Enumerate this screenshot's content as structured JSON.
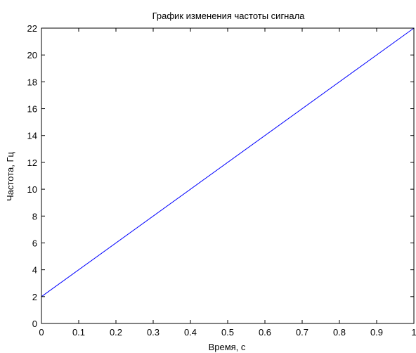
{
  "chart_data": {
    "type": "line",
    "title": "График изменения частоты сигнала",
    "xlabel": "Время, с",
    "ylabel": "Частота, Гц",
    "xlim": [
      0,
      1
    ],
    "ylim": [
      0,
      22
    ],
    "xticks": [
      0,
      0.1,
      0.2,
      0.3,
      0.4,
      0.5,
      0.6,
      0.7,
      0.8,
      0.9,
      1
    ],
    "xtick_labels": [
      "0",
      "0.1",
      "0.2",
      "0.3",
      "0.4",
      "0.5",
      "0.6",
      "0.7",
      "0.8",
      "0.9",
      "1"
    ],
    "yticks": [
      0,
      2,
      4,
      6,
      8,
      10,
      12,
      14,
      16,
      18,
      20,
      22
    ],
    "ytick_labels": [
      "0",
      "2",
      "4",
      "6",
      "8",
      "10",
      "12",
      "14",
      "16",
      "18",
      "20",
      "22"
    ],
    "grid": false,
    "series": [
      {
        "color": "#0000ff",
        "x": [
          0,
          1
        ],
        "y": [
          2,
          22
        ]
      }
    ]
  }
}
